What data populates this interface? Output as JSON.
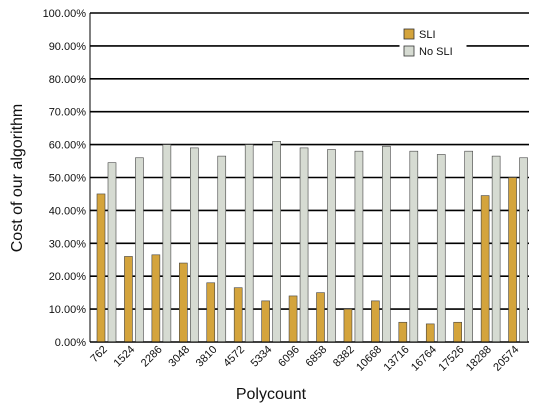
{
  "chart_data": {
    "type": "bar",
    "xlabel": "Polycount",
    "ylabel": "Cost of our algorithm",
    "ylim": [
      0,
      100
    ],
    "y_ticks": [
      "0.00%",
      "10.00%",
      "20.00%",
      "30.00%",
      "40.00%",
      "50.00%",
      "60.00%",
      "70.00%",
      "80.00%",
      "90.00%",
      "100.00%"
    ],
    "grid": true,
    "legend_position": "top-right",
    "categories": [
      "762",
      "1524",
      "2286",
      "3048",
      "3810",
      "4572",
      "5334",
      "6096",
      "6858",
      "8382",
      "10668",
      "13716",
      "16764",
      "17526",
      "18288",
      "20574"
    ],
    "series": [
      {
        "name": "SLI",
        "color": "#d4a43c",
        "values": [
          45.0,
          26.0,
          26.5,
          24.0,
          18.0,
          16.5,
          12.5,
          14.0,
          15.0,
          10.0,
          12.5,
          6.0,
          5.5,
          6.0,
          44.5,
          50.0
        ]
      },
      {
        "name": "No SLI",
        "color": "#d6dbd2",
        "values": [
          54.5,
          56.0,
          60.0,
          59.0,
          56.5,
          60.0,
          61.0,
          59.0,
          58.5,
          58.0,
          59.5,
          58.0,
          57.0,
          58.0,
          56.5,
          56.0
        ]
      }
    ]
  }
}
